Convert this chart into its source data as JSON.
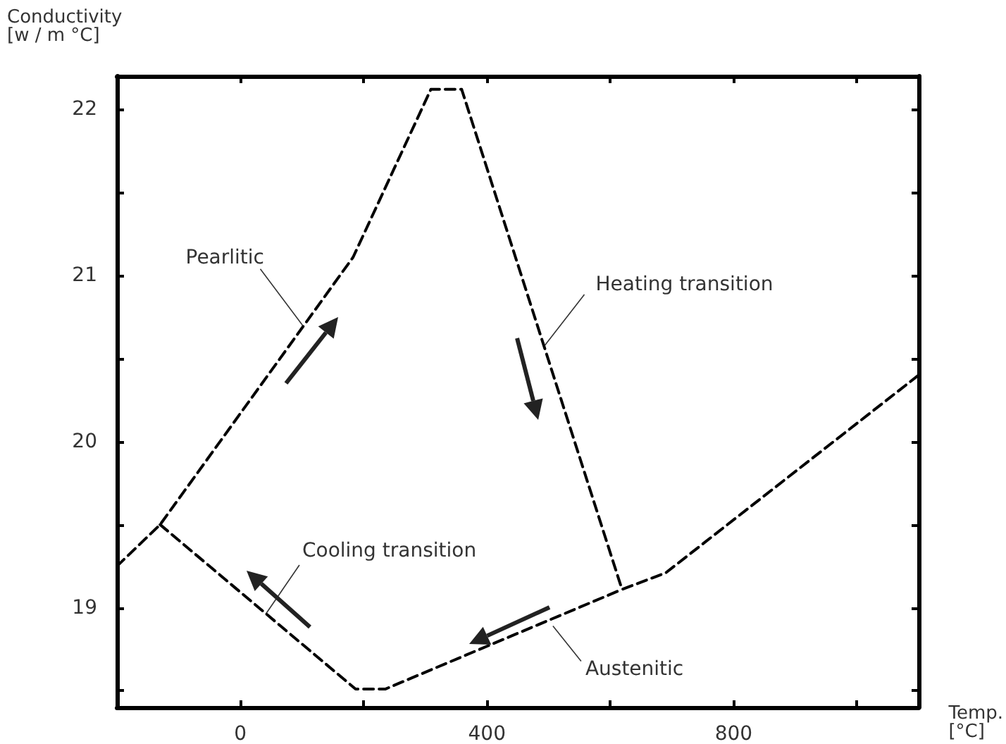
{
  "chart_data": {
    "type": "line",
    "xlabel": "Temp.\n[°C]",
    "ylabel": "Conductivity\n[w / m °C]",
    "series": [
      {
        "color": "#000000",
        "line_style": "dashed",
        "x": [
          -200,
          -130,
          183,
          309,
          359,
          619,
          690,
          1100
        ],
        "values": [
          19.25,
          19.5,
          21.11,
          22.12,
          22.12,
          19.11,
          19.21,
          20.4
        ]
      },
      {
        "color": "#000000",
        "line_style": "dashed",
        "x": [
          -130,
          187,
          235,
          619
        ],
        "values": [
          19.5,
          18.51,
          18.51,
          19.11
        ]
      }
    ],
    "annotations": [
      {
        "text": "Pearlitic",
        "x": 101,
        "y": 20.7
      },
      {
        "text": "Heating transition",
        "x": 494,
        "y": 20.58
      },
      {
        "text": "Cooling transition",
        "x": 41,
        "y": 18.96
      },
      {
        "text": "Austenitic",
        "x": 507,
        "y": 18.89
      }
    ],
    "xlim": [
      -200,
      1100
    ],
    "xticks": [
      0,
      {
        "value": 200,
        "label": null
      },
      400,
      {
        "value": 600,
        "label": null
      },
      800,
      {
        "value": 1000,
        "label": null
      }
    ],
    "ylim": [
      18.4,
      22.2
    ],
    "yticks": [
      {
        "value": 18.5,
        "label": null
      },
      19,
      {
        "value": 19.5,
        "label": null
      },
      20,
      {
        "value": 20.5,
        "label": null
      },
      21,
      {
        "value": 21.5,
        "label": null
      },
      22
    ],
    "grid": false,
    "marker": "none"
  }
}
